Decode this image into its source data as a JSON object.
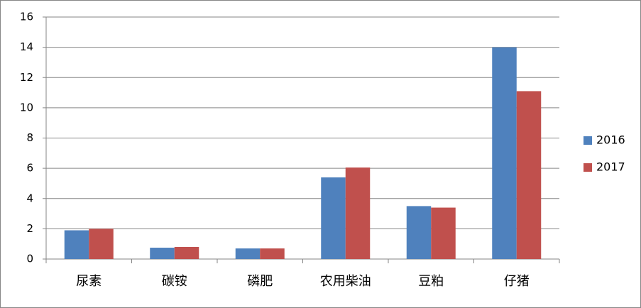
{
  "chart_data": {
    "type": "bar",
    "categories": [
      "尿素",
      "碳铵",
      "磷肥",
      "农用柴油",
      "豆粕",
      "仔猪"
    ],
    "series": [
      {
        "name": "2016",
        "color": "#4f81bd",
        "values": [
          1.9,
          0.75,
          0.7,
          5.4,
          3.5,
          14
        ]
      },
      {
        "name": "2017",
        "color": "#c0504d",
        "values": [
          2.0,
          0.8,
          0.7,
          6.05,
          3.4,
          11.1
        ]
      }
    ],
    "ylim": [
      0,
      16
    ],
    "yticks": [
      0,
      2,
      4,
      6,
      8,
      10,
      12,
      14,
      16
    ],
    "grid": true,
    "legend": "right"
  }
}
